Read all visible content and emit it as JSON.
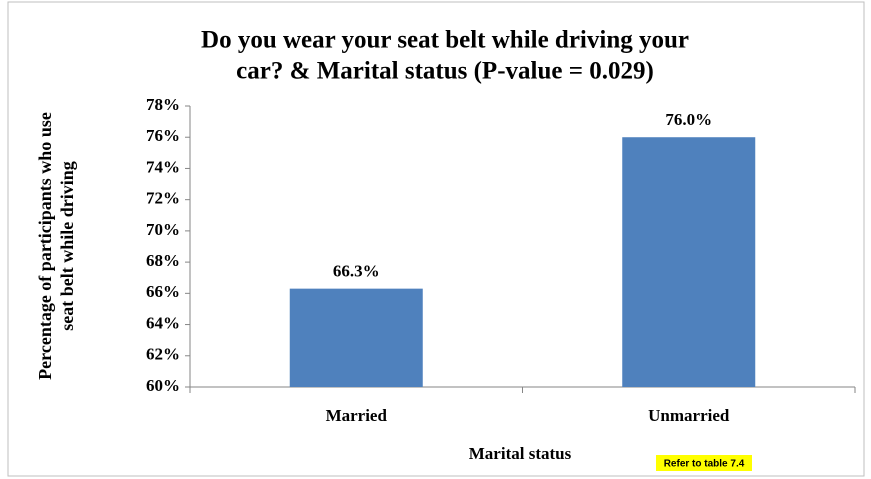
{
  "chart_data": {
    "type": "bar",
    "title": [
      "Do you wear your seat belt while driving your",
      "car? & Marital status (P-value = 0.029)"
    ],
    "y_label": [
      "Percentage of participants who use",
      "seat belt while driving"
    ],
    "x_label": "Marital status",
    "annotation": "Refer to table 7.4",
    "categories": [
      "Married",
      "Unmarried"
    ],
    "values": [
      66.3,
      76.0
    ],
    "value_labels": [
      "66.3%",
      "76.0%"
    ],
    "color": "#4f81bd",
    "ylim": [
      60,
      78
    ],
    "yticks": [
      {
        "value": 60,
        "label": "60%"
      },
      {
        "value": 62,
        "label": "62%"
      },
      {
        "value": 64,
        "label": "64%"
      },
      {
        "value": 66,
        "label": "66%"
      },
      {
        "value": 68,
        "label": "68%"
      },
      {
        "value": 70,
        "label": "70%"
      },
      {
        "value": 72,
        "label": "72%"
      },
      {
        "value": 74,
        "label": "74%"
      },
      {
        "value": 76,
        "label": "76%"
      },
      {
        "value": 78,
        "label": "78%"
      }
    ],
    "grid": false
  }
}
